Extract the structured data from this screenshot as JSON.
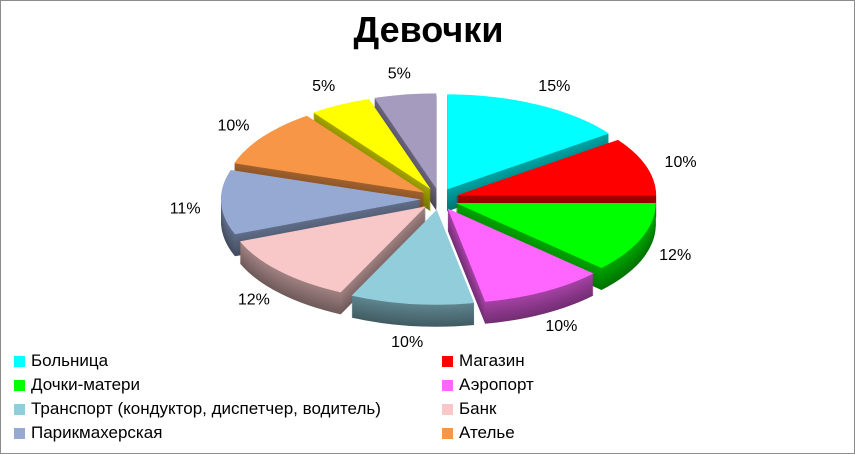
{
  "chart_data": {
    "type": "pie",
    "title": "Девочки",
    "style": "3d-exploded",
    "slices": [
      {
        "name": "Больница",
        "value": 15,
        "label": "15%",
        "color": "#00FFFF",
        "legend": true
      },
      {
        "name": "Магазин",
        "value": 10,
        "label": "10%",
        "color": "#FF0000",
        "legend": true
      },
      {
        "name": "Дочки-матери",
        "value": 12,
        "label": "12%",
        "color": "#00FF00",
        "legend": true
      },
      {
        "name": "Аэропорт",
        "value": 10,
        "label": "10%",
        "color": "#FF66FF",
        "legend": true
      },
      {
        "name": "Транспорт (кондуктор, диспетчер, водитель)",
        "value": 10,
        "label": "10%",
        "color": "#92CDDC",
        "legend": true
      },
      {
        "name": "Банк",
        "value": 12,
        "label": "12%",
        "color": "#F8C8C8",
        "legend": true
      },
      {
        "name": "Парикмахерская",
        "value": 11,
        "label": "11%",
        "color": "#95A9D2",
        "legend": true
      },
      {
        "name": "Ателье",
        "value": 10,
        "label": "10%",
        "color": "#F79646",
        "legend": true
      },
      {
        "name": "",
        "value": 5,
        "label": "5%",
        "color": "#FFFF00",
        "legend": false
      },
      {
        "name": "",
        "value": 5,
        "label": "5%",
        "color": "#A59BBF",
        "legend": false
      }
    ],
    "legend_position": "bottom"
  }
}
